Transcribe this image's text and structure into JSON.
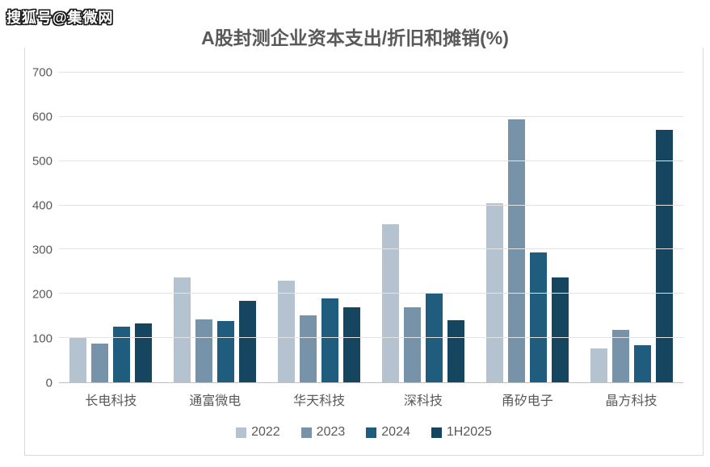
{
  "watermark": {
    "text": "搜狐号@集微网"
  },
  "chart": {
    "title": "A股封测企业资本支出/折旧和摊销(%)"
  },
  "chart_data": {
    "type": "bar",
    "title": "A股封测企业资本支出/折旧和摊销(%)",
    "categories": [
      "长电科技",
      "通富微电",
      "华天科技",
      "深科技",
      "甬矽电子",
      "晶方科技"
    ],
    "series": [
      {
        "name": "2022",
        "color": "#b5c2cf",
        "values": [
          103,
          237,
          230,
          358,
          405,
          76
        ]
      },
      {
        "name": "2023",
        "color": "#7793aa",
        "values": [
          88,
          142,
          151,
          169,
          594,
          119
        ]
      },
      {
        "name": "2024",
        "color": "#1f5c7d",
        "values": [
          126,
          139,
          190,
          203,
          294,
          84
        ]
      },
      {
        "name": "1H2025",
        "color": "#16465f",
        "values": [
          134,
          185,
          169,
          141,
          237,
          570
        ]
      }
    ],
    "xlabel": "",
    "ylabel": "",
    "ylim": [
      0,
      700
    ],
    "ytick_interval": 100,
    "grid": "horizontal",
    "legend_position": "bottom"
  }
}
